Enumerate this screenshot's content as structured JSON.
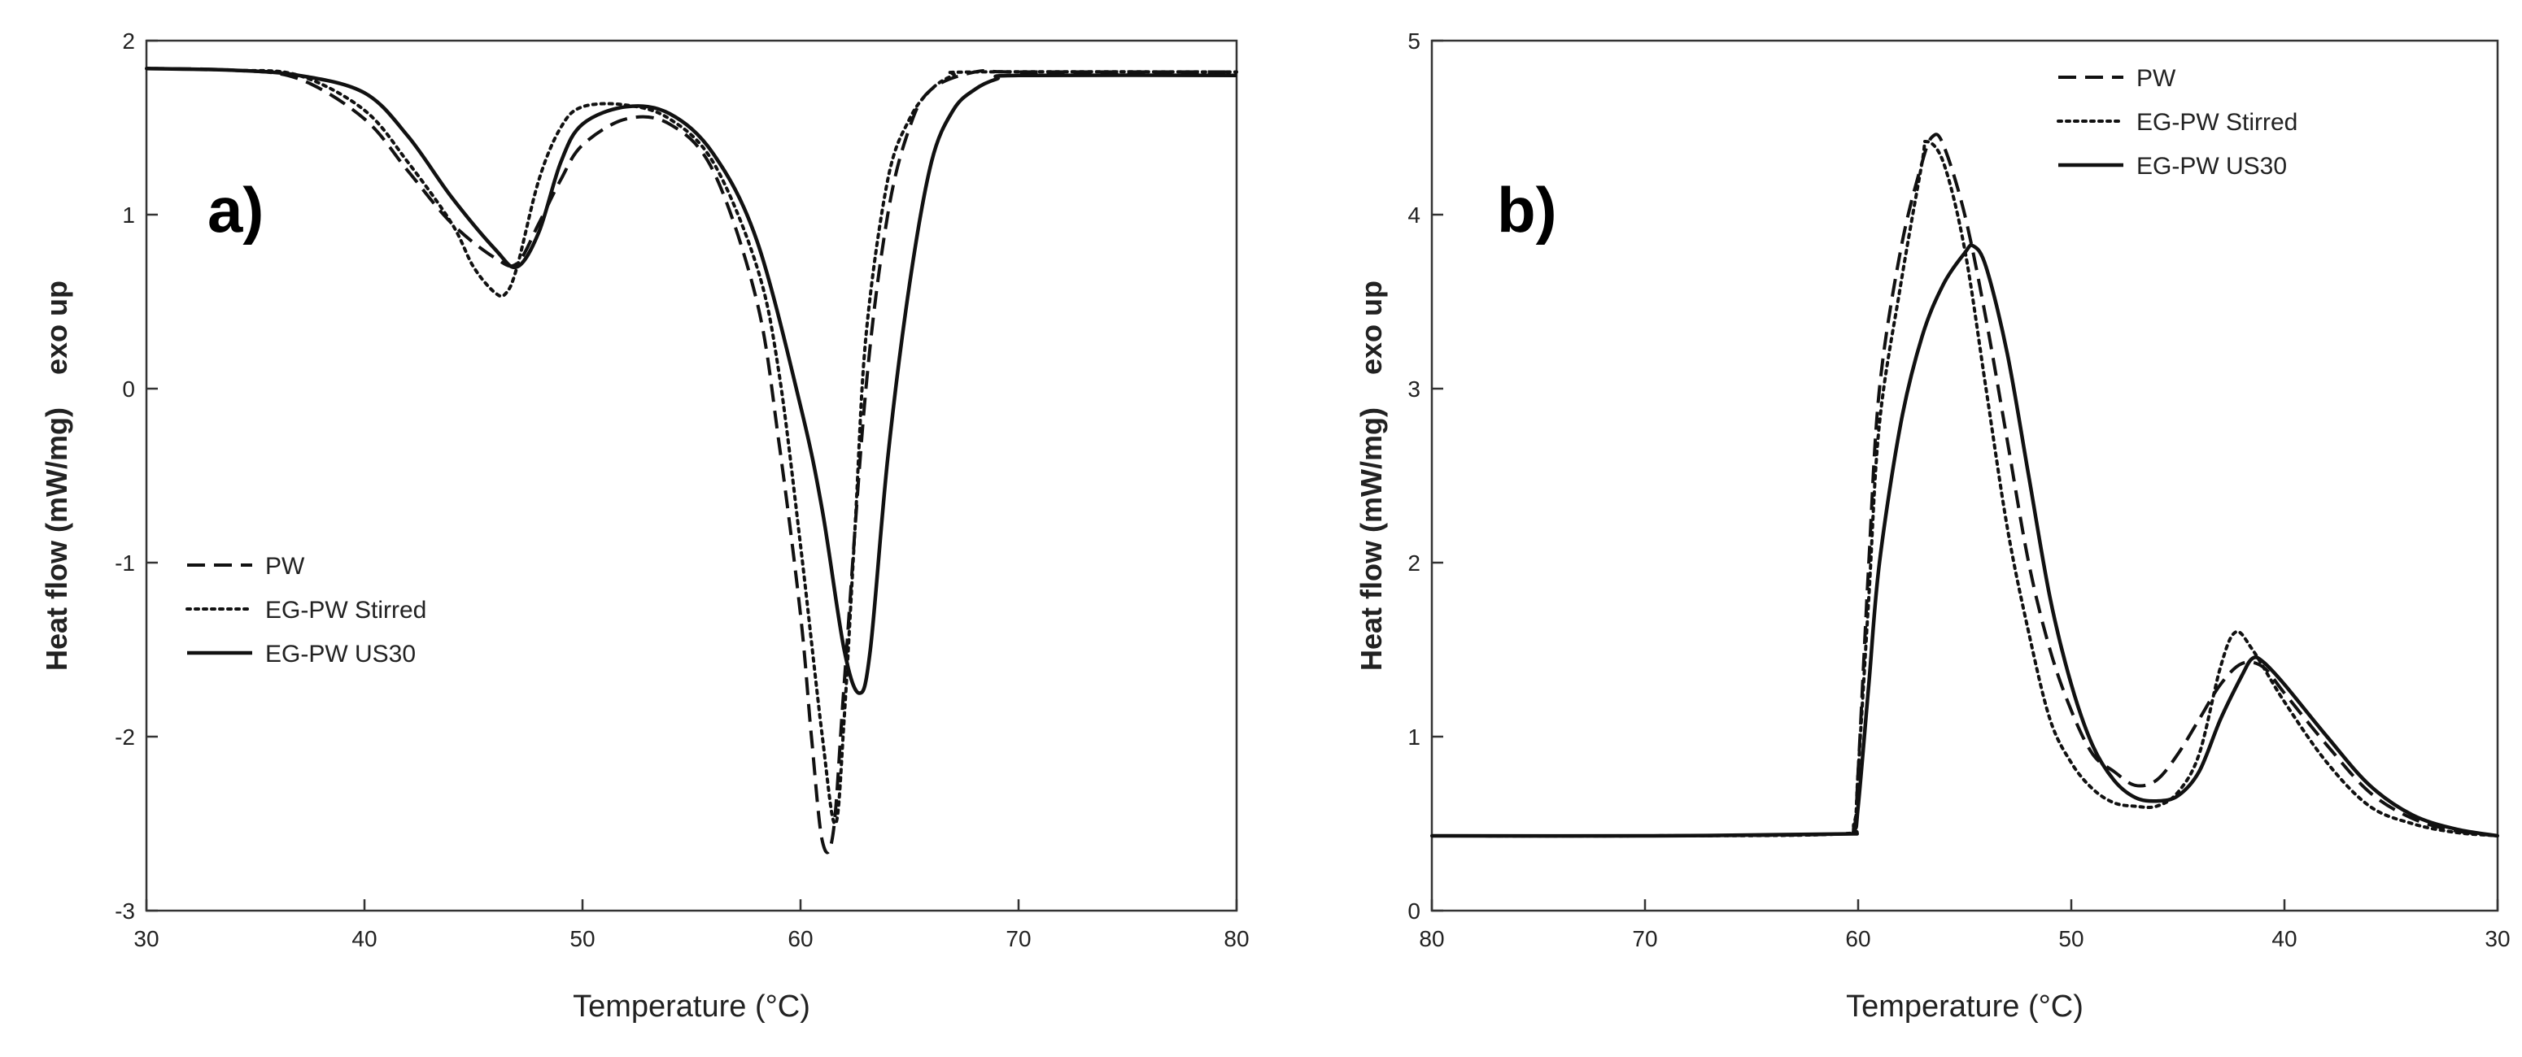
{
  "chart_data": [
    {
      "type": "line",
      "panel_label": "a)",
      "xlabel": "Temperature (°C)",
      "ylabel": "Heat flow (mW/mg)",
      "ylabel_suffix": "exo up",
      "xlim": [
        30,
        80
      ],
      "ylim": [
        -3,
        2
      ],
      "x_reversed": false,
      "xticks": [
        30,
        40,
        50,
        60,
        70,
        80
      ],
      "yticks": [
        -3,
        -2,
        -1,
        0,
        1,
        2
      ],
      "grid": false,
      "legend_position": "lower-left",
      "series": [
        {
          "name": "PW",
          "style": "dashed",
          "points": [
            [
              30,
              1.84
            ],
            [
              34,
              1.83
            ],
            [
              37,
              1.78
            ],
            [
              40,
              1.55
            ],
            [
              42,
              1.25
            ],
            [
              44,
              0.95
            ],
            [
              46,
              0.75
            ],
            [
              47,
              0.72
            ],
            [
              48,
              0.95
            ],
            [
              49,
              1.2
            ],
            [
              50,
              1.4
            ],
            [
              52,
              1.55
            ],
            [
              54,
              1.52
            ],
            [
              56,
              1.25
            ],
            [
              58,
              0.5
            ],
            [
              59,
              -0.3
            ],
            [
              60,
              -1.3
            ],
            [
              60.5,
              -2.0
            ],
            [
              61,
              -2.6
            ],
            [
              61.5,
              -2.55
            ],
            [
              62,
              -1.7
            ],
            [
              63,
              0.0
            ],
            [
              64,
              1.0
            ],
            [
              65,
              1.5
            ],
            [
              66,
              1.72
            ],
            [
              68,
              1.82
            ],
            [
              70,
              1.82
            ],
            [
              80,
              1.82
            ]
          ]
        },
        {
          "name": "EG-PW Stirred",
          "style": "dotted",
          "points": [
            [
              30,
              1.84
            ],
            [
              34,
              1.83
            ],
            [
              37,
              1.8
            ],
            [
              40,
              1.6
            ],
            [
              42,
              1.3
            ],
            [
              44,
              0.95
            ],
            [
              45,
              0.7
            ],
            [
              46,
              0.55
            ],
            [
              46.5,
              0.55
            ],
            [
              47,
              0.7
            ],
            [
              48,
              1.2
            ],
            [
              49,
              1.5
            ],
            [
              50,
              1.62
            ],
            [
              52,
              1.63
            ],
            [
              54,
              1.55
            ],
            [
              56,
              1.3
            ],
            [
              58,
              0.7
            ],
            [
              59,
              0.1
            ],
            [
              60,
              -0.9
            ],
            [
              61,
              -2.0
            ],
            [
              61.6,
              -2.5
            ],
            [
              62,
              -1.9
            ],
            [
              62.5,
              -0.8
            ],
            [
              63,
              0.3
            ],
            [
              64,
              1.2
            ],
            [
              65,
              1.55
            ],
            [
              66,
              1.72
            ],
            [
              67,
              1.8
            ],
            [
              68,
              1.82
            ],
            [
              80,
              1.82
            ]
          ]
        },
        {
          "name": "EG-PW US30",
          "style": "solid",
          "points": [
            [
              30,
              1.84
            ],
            [
              34,
              1.83
            ],
            [
              37,
              1.8
            ],
            [
              40,
              1.7
            ],
            [
              42,
              1.45
            ],
            [
              44,
              1.1
            ],
            [
              46,
              0.8
            ],
            [
              47,
              0.7
            ],
            [
              48,
              0.9
            ],
            [
              49,
              1.3
            ],
            [
              50,
              1.52
            ],
            [
              52,
              1.62
            ],
            [
              54,
              1.58
            ],
            [
              56,
              1.35
            ],
            [
              58,
              0.85
            ],
            [
              60,
              -0.1
            ],
            [
              61,
              -0.7
            ],
            [
              62,
              -1.5
            ],
            [
              62.7,
              -1.75
            ],
            [
              63.2,
              -1.5
            ],
            [
              64,
              -0.4
            ],
            [
              65,
              0.6
            ],
            [
              66,
              1.3
            ],
            [
              67,
              1.6
            ],
            [
              68,
              1.72
            ],
            [
              69,
              1.78
            ],
            [
              70,
              1.8
            ],
            [
              80,
              1.8
            ]
          ]
        }
      ]
    },
    {
      "type": "line",
      "panel_label": "b)",
      "xlabel": "Temperature (°C)",
      "ylabel": "Heat flow (mW/mg)",
      "ylabel_suffix": "exo up",
      "xlim": [
        80,
        30
      ],
      "ylim": [
        0,
        5
      ],
      "x_reversed": true,
      "xticks": [
        80,
        70,
        60,
        50,
        40,
        30
      ],
      "yticks": [
        0,
        1,
        2,
        3,
        4,
        5
      ],
      "grid": false,
      "legend_position": "top-right",
      "series": [
        {
          "name": "PW",
          "style": "dashed",
          "points": [
            [
              80,
              0.43
            ],
            [
              70,
              0.43
            ],
            [
              61,
              0.44
            ],
            [
              60.2,
              0.48
            ],
            [
              60,
              0.8
            ],
            [
              59.5,
              2.0
            ],
            [
              59,
              3.0
            ],
            [
              58,
              3.8
            ],
            [
              57,
              4.3
            ],
            [
              56.5,
              4.45
            ],
            [
              56,
              4.4
            ],
            [
              55,
              4.0
            ],
            [
              54,
              3.4
            ],
            [
              53,
              2.7
            ],
            [
              52,
              2.0
            ],
            [
              51,
              1.5
            ],
            [
              50,
              1.15
            ],
            [
              49,
              0.9
            ],
            [
              48,
              0.8
            ],
            [
              47,
              0.72
            ],
            [
              46,
              0.75
            ],
            [
              45,
              0.9
            ],
            [
              44,
              1.1
            ],
            [
              43,
              1.3
            ],
            [
              42,
              1.42
            ],
            [
              41,
              1.4
            ],
            [
              40,
              1.25
            ],
            [
              38,
              0.95
            ],
            [
              36,
              0.68
            ],
            [
              34,
              0.53
            ],
            [
              32,
              0.46
            ],
            [
              30,
              0.43
            ]
          ]
        },
        {
          "name": "EG-PW Stirred",
          "style": "dotted",
          "points": [
            [
              80,
              0.43
            ],
            [
              70,
              0.43
            ],
            [
              61,
              0.44
            ],
            [
              60.2,
              0.5
            ],
            [
              60,
              0.8
            ],
            [
              59.5,
              1.8
            ],
            [
              59,
              2.8
            ],
            [
              58,
              3.6
            ],
            [
              57,
              4.3
            ],
            [
              56.8,
              4.42
            ],
            [
              56,
              4.3
            ],
            [
              55,
              3.8
            ],
            [
              54,
              3.0
            ],
            [
              53,
              2.2
            ],
            [
              52,
              1.6
            ],
            [
              51,
              1.1
            ],
            [
              50,
              0.85
            ],
            [
              49,
              0.7
            ],
            [
              48,
              0.62
            ],
            [
              47,
              0.6
            ],
            [
              46,
              0.6
            ],
            [
              45,
              0.68
            ],
            [
              44,
              0.9
            ],
            [
              43,
              1.4
            ],
            [
              42.3,
              1.6
            ],
            [
              41.5,
              1.5
            ],
            [
              40,
              1.2
            ],
            [
              38,
              0.85
            ],
            [
              36,
              0.6
            ],
            [
              34,
              0.5
            ],
            [
              32,
              0.45
            ],
            [
              30,
              0.43
            ]
          ]
        },
        {
          "name": "EG-PW US30",
          "style": "solid",
          "points": [
            [
              80,
              0.43
            ],
            [
              70,
              0.43
            ],
            [
              61,
              0.44
            ],
            [
              60.2,
              0.46
            ],
            [
              60,
              0.6
            ],
            [
              59.5,
              1.3
            ],
            [
              59,
              2.0
            ],
            [
              58,
              2.8
            ],
            [
              57,
              3.3
            ],
            [
              56,
              3.6
            ],
            [
              55,
              3.78
            ],
            [
              54.6,
              3.82
            ],
            [
              54,
              3.7
            ],
            [
              53,
              3.2
            ],
            [
              52,
              2.5
            ],
            [
              51,
              1.8
            ],
            [
              50,
              1.3
            ],
            [
              49,
              0.95
            ],
            [
              48,
              0.75
            ],
            [
              47,
              0.65
            ],
            [
              46,
              0.63
            ],
            [
              45,
              0.66
            ],
            [
              44,
              0.8
            ],
            [
              43,
              1.1
            ],
            [
              42,
              1.35
            ],
            [
              41.5,
              1.45
            ],
            [
              41,
              1.43
            ],
            [
              40,
              1.3
            ],
            [
              38,
              1.0
            ],
            [
              36,
              0.72
            ],
            [
              34,
              0.55
            ],
            [
              32,
              0.47
            ],
            [
              30,
              0.43
            ]
          ]
        }
      ]
    }
  ]
}
